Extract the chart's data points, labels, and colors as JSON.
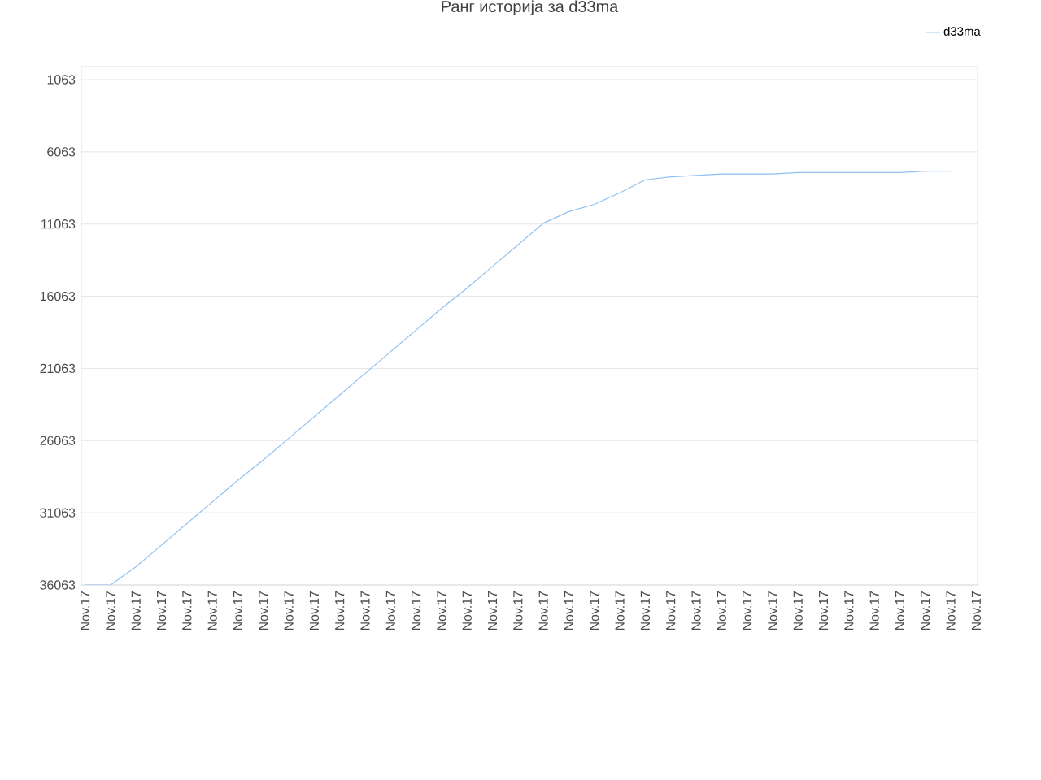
{
  "chart_data": {
    "type": "line",
    "title": "Ранг историја за d33ma",
    "categories": [
      "Nov.17",
      "Nov.17",
      "Nov.17",
      "Nov.17",
      "Nov.17",
      "Nov.17",
      "Nov.17",
      "Nov.17",
      "Nov.17",
      "Nov.17",
      "Nov.17",
      "Nov.17",
      "Nov.17",
      "Nov.17",
      "Nov.17",
      "Nov.17",
      "Nov.17",
      "Nov.17",
      "Nov.17",
      "Nov.17",
      "Nov.17",
      "Nov.17",
      "Nov.17",
      "Nov.17",
      "Nov.17",
      "Nov.17",
      "Nov.17",
      "Nov.17",
      "Nov.17",
      "Nov.17",
      "Nov.17",
      "Nov.17",
      "Nov.17",
      "Nov.17",
      "Nov.17",
      "Nov.17"
    ],
    "series": [
      {
        "name": "d33ma",
        "color": "#90c0f0",
        "values": [
          36063,
          36063,
          34800,
          33300,
          31800,
          30300,
          28800,
          27400,
          25900,
          24400,
          22900,
          21400,
          19900,
          18400,
          16900,
          15500,
          14000,
          12500,
          11000,
          10200,
          9700,
          8900,
          8000,
          7800,
          7700,
          7600,
          7600,
          7600,
          7500,
          7500,
          7500,
          7500,
          7500,
          7400,
          7400,
          null
        ]
      }
    ],
    "ylim": [
      36063,
      163
    ],
    "yticks": [
      1063,
      6063,
      11063,
      16063,
      21063,
      26063,
      31063,
      36063
    ],
    "grid": "y",
    "legend": "top right",
    "marker": "none",
    "line_style": "solid"
  }
}
